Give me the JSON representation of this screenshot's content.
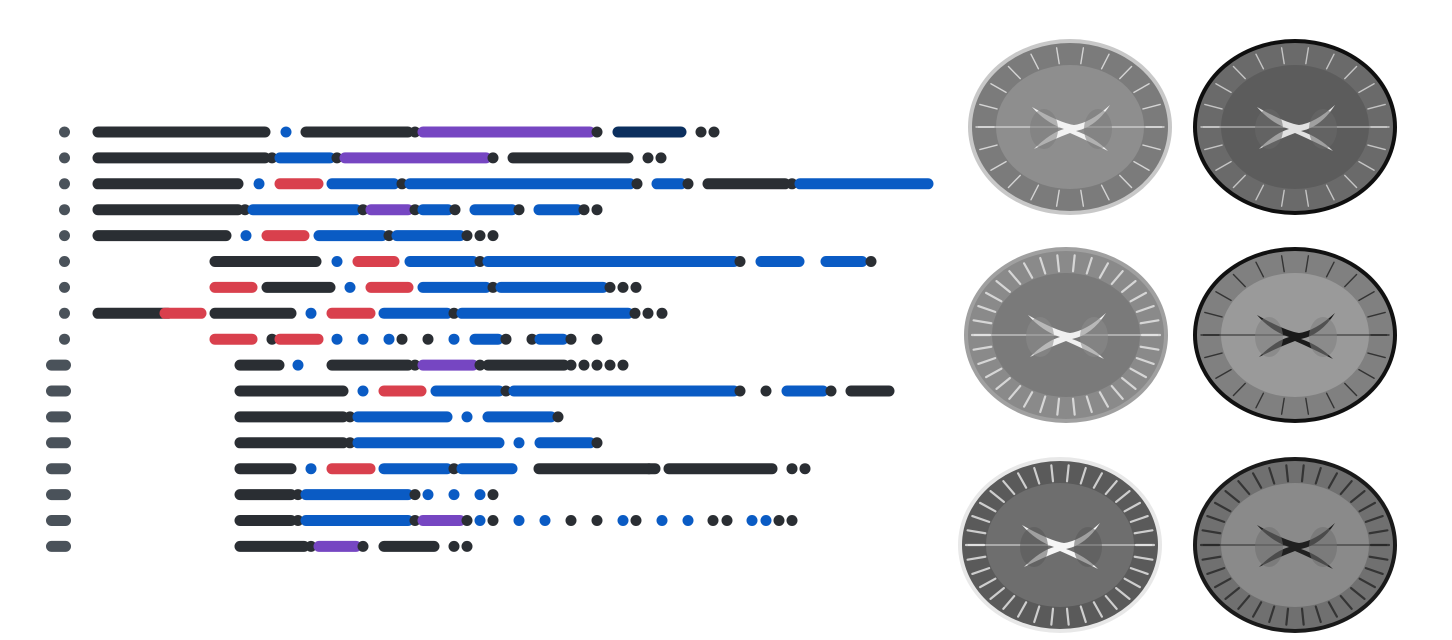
{
  "colors": {
    "dark": "#2a2e33",
    "blue": "#0a5bc4",
    "red": "#d9404d",
    "purple": "#7646c2",
    "navy": "#0b2f5e",
    "marker": "#4a525a",
    "background": "#ffffff"
  },
  "legend": [],
  "rows": [
    {
      "marker": "dot",
      "segments": [
        [
          "dark",
          98,
          265
        ],
        [
          "blue",
          286,
          286
        ],
        [
          "dark",
          306,
          408
        ],
        [
          "dark",
          415,
          415
        ],
        [
          "purple",
          423,
          590
        ],
        [
          "dark",
          597,
          597
        ],
        [
          "navy",
          618,
          681
        ],
        [
          "dark",
          701,
          701
        ],
        [
          "dark",
          714,
          714
        ]
      ]
    },
    {
      "marker": "dot",
      "segments": [
        [
          "dark",
          98,
          265
        ],
        [
          "dark",
          272,
          272
        ],
        [
          "blue",
          280,
          330
        ],
        [
          "dark",
          337,
          337
        ],
        [
          "purple",
          345,
          486
        ],
        [
          "dark",
          493,
          493
        ],
        [
          "dark",
          513,
          628
        ],
        [
          "dark",
          648,
          648
        ],
        [
          "dark",
          661,
          661
        ]
      ]
    },
    {
      "marker": "dot",
      "segments": [
        [
          "dark",
          98,
          238
        ],
        [
          "blue",
          259,
          259
        ],
        [
          "red",
          280,
          318
        ],
        [
          "blue",
          332,
          394
        ],
        [
          "dark",
          402,
          402
        ],
        [
          "blue",
          410,
          630
        ],
        [
          "dark",
          637,
          637
        ],
        [
          "blue",
          657,
          681
        ],
        [
          "dark",
          688,
          688
        ],
        [
          "dark",
          708,
          785
        ],
        [
          "dark",
          792,
          792
        ],
        [
          "blue",
          800,
          928
        ]
      ]
    },
    {
      "marker": "dot",
      "segments": [
        [
          "dark",
          98,
          238
        ],
        [
          "dark",
          245,
          245
        ],
        [
          "blue",
          253,
          356
        ],
        [
          "dark",
          363,
          363
        ],
        [
          "purple",
          371,
          408
        ],
        [
          "dark",
          415,
          415
        ],
        [
          "blue",
          423,
          448
        ],
        [
          "dark",
          455,
          455
        ],
        [
          "blue",
          475,
          512
        ],
        [
          "dark",
          519,
          519
        ],
        [
          "blue",
          539,
          577
        ],
        [
          "dark",
          584,
          584
        ],
        [
          "dark",
          597,
          597
        ]
      ]
    },
    {
      "marker": "dot",
      "segments": [
        [
          "dark",
          98,
          226
        ],
        [
          "blue",
          246,
          246
        ],
        [
          "red",
          267,
          304
        ],
        [
          "blue",
          319,
          382
        ],
        [
          "dark",
          389,
          389
        ],
        [
          "blue",
          397,
          460
        ],
        [
          "dark",
          467,
          467
        ],
        [
          "dark",
          480,
          480
        ],
        [
          "dark",
          493,
          493
        ]
      ]
    },
    {
      "marker": "dot",
      "segments": [
        [
          "dark",
          215,
          316
        ],
        [
          "blue",
          337,
          337
        ],
        [
          "red",
          358,
          394
        ],
        [
          "blue",
          410,
          473
        ],
        [
          "dark",
          480,
          480
        ],
        [
          "blue",
          488,
          734
        ],
        [
          "dark",
          740,
          740
        ],
        [
          "blue",
          761,
          799
        ],
        [
          "blue",
          826,
          862
        ],
        [
          "dark",
          871,
          871
        ]
      ]
    },
    {
      "marker": "dot",
      "segments": [
        [
          "red",
          215,
          252
        ],
        [
          "dark",
          267,
          330
        ],
        [
          "blue",
          350,
          350
        ],
        [
          "red",
          371,
          408
        ],
        [
          "blue",
          423,
          486
        ],
        [
          "dark",
          493,
          493
        ],
        [
          "blue",
          501,
          603
        ],
        [
          "dark",
          610,
          610
        ],
        [
          "dark",
          623,
          623
        ],
        [
          "dark",
          636,
          636
        ]
      ]
    },
    {
      "marker": "dot",
      "segments": [
        [
          "dark",
          98,
          168
        ],
        [
          "red",
          165,
          201
        ],
        [
          "dark",
          215,
          291
        ],
        [
          "blue",
          311,
          311
        ],
        [
          "red",
          332,
          370
        ],
        [
          "blue",
          384,
          447
        ],
        [
          "dark",
          454,
          454
        ],
        [
          "blue",
          462,
          628
        ],
        [
          "dark",
          635,
          635
        ],
        [
          "dark",
          648,
          648
        ],
        [
          "dark",
          662,
          662
        ]
      ]
    },
    {
      "marker": "dot",
      "segments": [
        [
          "red",
          215,
          252
        ],
        [
          "dark",
          272,
          272
        ],
        [
          "red",
          280,
          318
        ],
        [
          "blue",
          337,
          337
        ],
        [
          "blue",
          363,
          363
        ],
        [
          "blue",
          389,
          389
        ],
        [
          "dark",
          402,
          402
        ],
        [
          "dark",
          428,
          428
        ],
        [
          "blue",
          454,
          454
        ],
        [
          "blue",
          475,
          498
        ],
        [
          "dark",
          506,
          506
        ],
        [
          "dark",
          532,
          532
        ],
        [
          "blue",
          540,
          563
        ],
        [
          "dark",
          571,
          571
        ],
        [
          "dark",
          597,
          597
        ]
      ]
    },
    {
      "marker": "pill",
      "segments": [
        [
          "dark",
          240,
          279
        ],
        [
          "blue",
          298,
          298
        ],
        [
          "dark",
          332,
          408
        ],
        [
          "dark",
          415,
          415
        ],
        [
          "purple",
          423,
          473
        ],
        [
          "dark",
          480,
          480
        ],
        [
          "dark",
          488,
          564
        ],
        [
          "dark",
          571,
          571
        ],
        [
          "dark",
          584,
          584
        ],
        [
          "dark",
          597,
          597
        ],
        [
          "dark",
          610,
          610
        ],
        [
          "dark",
          623,
          623
        ]
      ]
    },
    {
      "marker": "pill",
      "segments": [
        [
          "dark",
          240,
          343
        ],
        [
          "blue",
          363,
          363
        ],
        [
          "red",
          384,
          421
        ],
        [
          "blue",
          436,
          499
        ],
        [
          "dark",
          506,
          506
        ],
        [
          "blue",
          514,
          734
        ],
        [
          "dark",
          740,
          740
        ],
        [
          "dark",
          766,
          766
        ],
        [
          "blue",
          787,
          823
        ],
        [
          "dark",
          831,
          831
        ],
        [
          "dark",
          851,
          889
        ]
      ]
    },
    {
      "marker": "pill",
      "segments": [
        [
          "dark",
          240,
          343
        ],
        [
          "dark",
          350,
          350
        ],
        [
          "blue",
          358,
          447
        ],
        [
          "blue",
          467,
          467
        ],
        [
          "blue",
          488,
          551
        ],
        [
          "dark",
          558,
          558
        ]
      ]
    },
    {
      "marker": "pill",
      "segments": [
        [
          "dark",
          240,
          343
        ],
        [
          "dark",
          350,
          350
        ],
        [
          "blue",
          358,
          499
        ],
        [
          "blue",
          519,
          519
        ],
        [
          "blue",
          540,
          590
        ],
        [
          "dark",
          597,
          597
        ]
      ]
    },
    {
      "marker": "pill",
      "segments": [
        [
          "dark",
          240,
          291
        ],
        [
          "blue",
          311,
          311
        ],
        [
          "red",
          332,
          370
        ],
        [
          "blue",
          384,
          447
        ],
        [
          "dark",
          454,
          454
        ],
        [
          "blue",
          462,
          512
        ],
        [
          "dark",
          539,
          655
        ],
        [
          "dark",
          649,
          649
        ],
        [
          "dark",
          669,
          772
        ],
        [
          "dark",
          792,
          792
        ],
        [
          "dark",
          805,
          805
        ]
      ]
    },
    {
      "marker": "pill",
      "segments": [
        [
          "dark",
          240,
          291
        ],
        [
          "dark",
          298,
          298
        ],
        [
          "blue",
          306,
          408
        ],
        [
          "dark",
          415,
          415
        ],
        [
          "blue",
          428,
          428
        ],
        [
          "blue",
          454,
          454
        ],
        [
          "blue",
          480,
          480
        ],
        [
          "dark",
          493,
          493
        ]
      ]
    },
    {
      "marker": "pill",
      "segments": [
        [
          "dark",
          240,
          291
        ],
        [
          "dark",
          298,
          298
        ],
        [
          "blue",
          306,
          408
        ],
        [
          "dark",
          415,
          415
        ],
        [
          "purple",
          423,
          460
        ],
        [
          "dark",
          467,
          467
        ],
        [
          "blue",
          480,
          480
        ],
        [
          "dark",
          493,
          493
        ],
        [
          "blue",
          519,
          519
        ],
        [
          "blue",
          545,
          545
        ],
        [
          "dark",
          571,
          571
        ],
        [
          "dark",
          597,
          597
        ],
        [
          "blue",
          623,
          623
        ],
        [
          "dark",
          636,
          636
        ],
        [
          "blue",
          662,
          662
        ],
        [
          "blue",
          688,
          688
        ],
        [
          "dark",
          713,
          713
        ],
        [
          "dark",
          727,
          727
        ],
        [
          "blue",
          752,
          752
        ],
        [
          "blue",
          766,
          766
        ],
        [
          "dark",
          779,
          779
        ],
        [
          "dark",
          792,
          792
        ]
      ]
    },
    {
      "marker": "pill",
      "segments": [
        [
          "dark",
          240,
          304
        ],
        [
          "dark",
          311,
          311
        ],
        [
          "purple",
          319,
          356
        ],
        [
          "dark",
          363,
          363
        ],
        [
          "dark",
          384,
          434
        ],
        [
          "dark",
          454,
          454
        ],
        [
          "dark",
          467,
          467
        ]
      ]
    }
  ],
  "scans": [
    {
      "id": "scan-1",
      "variant": "thin-skull",
      "rim": "#c8c8c8",
      "cortex": "#7b7b7b",
      "matter": "#8e8e8e",
      "fluid": "#f2f2f2"
    },
    {
      "id": "scan-2",
      "variant": "dark-rim",
      "rim": "#0f0f0f",
      "cortex": "#6a6a6a",
      "matter": "#5c5c5c",
      "fluid": "#e2e2e2"
    },
    {
      "id": "scan-3",
      "variant": "folded",
      "rim": "#a0a0a0",
      "cortex": "#8a8a8a",
      "matter": "#7a7a7a",
      "fluid": "#f0f0f0"
    },
    {
      "id": "scan-4",
      "variant": "dark-rim",
      "rim": "#111111",
      "cortex": "#808080",
      "matter": "#9a9a9a",
      "fluid": "#1a1a1a"
    },
    {
      "id": "scan-5",
      "variant": "folded",
      "rim": "#e8e8e8",
      "cortex": "#5a5a5a",
      "matter": "#6e6e6e",
      "fluid": "#f5f5f5"
    },
    {
      "id": "scan-6",
      "variant": "folded",
      "rim": "#1a1a1a",
      "cortex": "#707070",
      "matter": "#8a8a8a",
      "fluid": "#202020"
    }
  ]
}
